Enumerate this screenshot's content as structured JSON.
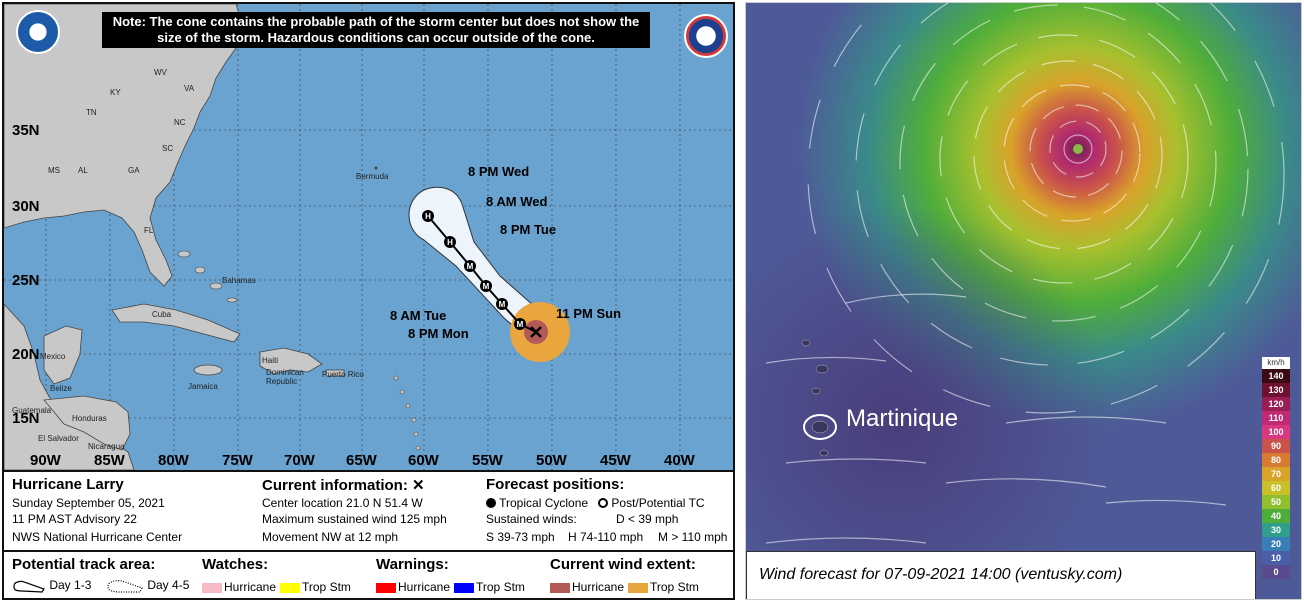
{
  "left_panel": {
    "note": "Note: The cone contains the probable path of the storm center but does not show the size of the storm. Hazardous conditions can occur outside of the cone.",
    "logos": {
      "left": "noaa-logo",
      "right": "nws-logo"
    },
    "lat_labels": [
      "35N",
      "30N",
      "25N",
      "20N",
      "15N"
    ],
    "lon_labels": [
      "90W",
      "85W",
      "80W",
      "75W",
      "70W",
      "65W",
      "60W",
      "55W",
      "50W",
      "45W",
      "40W"
    ],
    "states": [
      "WV",
      "KY",
      "VA",
      "TN",
      "NC",
      "SC",
      "MS",
      "AL",
      "GA",
      "FL"
    ],
    "places": [
      "Bermuda",
      "Bahamas",
      "Cuba",
      "Mexico",
      "Belize",
      "Honduras",
      "Guatemala",
      "El Salvador",
      "Nicaragua",
      "Jamaica",
      "Haiti",
      "Dominican Republic",
      "Puerto Rico"
    ],
    "forecast_labels": {
      "wed_pm": "8 PM Wed",
      "wed_am": "8 AM Wed",
      "tue_pm": "8 PM Tue",
      "tue_am": "8 AM Tue",
      "mon_pm": "8 PM Mon",
      "sun_pm": "11 PM Sun"
    },
    "markers": [
      "H",
      "H",
      "M",
      "M",
      "M",
      "M"
    ],
    "info": {
      "storm_name": "Hurricane Larry",
      "date": "Sunday September 05, 2021",
      "advisory": "11 PM AST Advisory 22",
      "center": "NWS National Hurricane Center",
      "current_title": "Current information:",
      "current_symbol": "✕",
      "location": "Center location 21.0 N 51.4 W",
      "max_wind": "Maximum sustained wind 125 mph",
      "movement": "Movement NW at 12 mph",
      "forecast_title": "Forecast positions:",
      "tropical_cyclone": "Tropical Cyclone",
      "post_tc": "Post/Potential TC",
      "sustained": "Sustained winds:",
      "d_line": "D < 39 mph",
      "s_line": "S 39-73 mph",
      "h_line": "H 74-110 mph",
      "m_line": "M > 110 mph"
    },
    "legend": {
      "track_title": "Potential track area:",
      "day13": "Day 1-3",
      "day45": "Day 4-5",
      "watches_title": "Watches:",
      "watch_hurricane": "Hurricane",
      "watch_trop": "Trop Stm",
      "warnings_title": "Warnings:",
      "warn_hurricane": "Hurricane",
      "warn_trop": "Trop Stm",
      "wind_title": "Current wind extent:",
      "wind_hurricane": "Hurricane",
      "wind_trop": "Trop Stm"
    },
    "colors": {
      "ocean": "#6aa3cf",
      "land": "#c8c8c8",
      "cone": "#eef4fb",
      "hurricane_wind": "#b35a57",
      "trop_wind": "#e9a63e",
      "watch_hurricane": "#f7b9c4",
      "watch_trop": "#ffff00",
      "warn_hurricane": "#ff0000",
      "warn_trop": "#0000ff"
    }
  },
  "right_panel": {
    "martinique": "Martinique",
    "caption": "Wind forecast for 07-09-2021 14:00 (ventusky.com)",
    "scale_unit": "km/h",
    "scale": [
      {
        "label": "140",
        "color": "#3a0a12"
      },
      {
        "label": "130",
        "color": "#6e1030"
      },
      {
        "label": "120",
        "color": "#9a1e56"
      },
      {
        "label": "110",
        "color": "#c02a74"
      },
      {
        "label": "100",
        "color": "#d8387e"
      },
      {
        "label": "90",
        "color": "#c9524a"
      },
      {
        "label": "80",
        "color": "#d77a32"
      },
      {
        "label": "70",
        "color": "#d9a22a"
      },
      {
        "label": "60",
        "color": "#c9c02a"
      },
      {
        "label": "50",
        "color": "#8fbf2e"
      },
      {
        "label": "40",
        "color": "#4fae3a"
      },
      {
        "label": "30",
        "color": "#2f9e8a"
      },
      {
        "label": "20",
        "color": "#3a7eb8"
      },
      {
        "label": "10",
        "color": "#4a5ea8"
      },
      {
        "label": "0",
        "color": "#5a4a8e"
      }
    ]
  }
}
